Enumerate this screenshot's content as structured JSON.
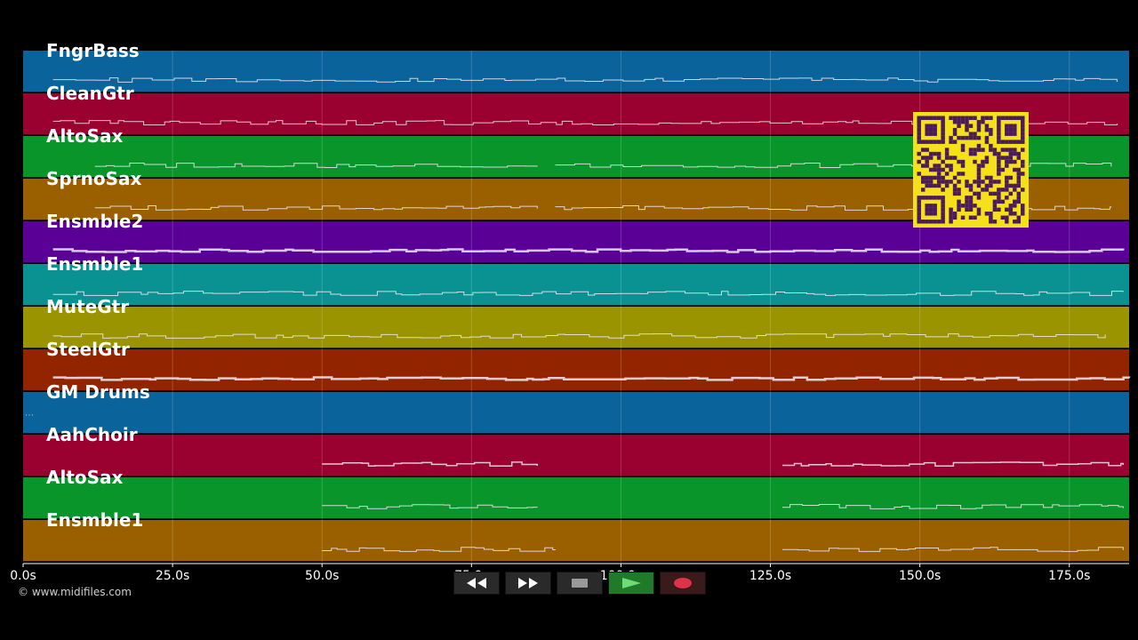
{
  "tracks": [
    {
      "name": "FngrBass",
      "color": "#0a639a",
      "segments": [
        [
          5,
          183
        ]
      ],
      "thick": 1
    },
    {
      "name": "CleanGtr",
      "color": "#9a0030",
      "segments": [
        [
          5,
          183
        ]
      ],
      "thick": 1
    },
    {
      "name": "AltoSax",
      "color": "#0a952a",
      "segments": [
        [
          12,
          86
        ],
        [
          89,
          182
        ]
      ],
      "thick": 1
    },
    {
      "name": "SprnoSax",
      "color": "#9a6000",
      "segments": [
        [
          12,
          86
        ],
        [
          89,
          182
        ]
      ],
      "thick": 1
    },
    {
      "name": "Ensmble2",
      "color": "#5b0097",
      "segments": [
        [
          5,
          184
        ]
      ],
      "thick": 3
    },
    {
      "name": "Ensmble1",
      "color": "#0a9292",
      "segments": [
        [
          5,
          184
        ]
      ],
      "thick": 1
    },
    {
      "name": "MuteGtr",
      "color": "#999400",
      "segments": [
        [
          5,
          181
        ]
      ],
      "thick": 1
    },
    {
      "name": "SteelGtr",
      "color": "#922500",
      "segments": [
        [
          5,
          185
        ]
      ],
      "thick": 3
    },
    {
      "name": "GM Drums",
      "color": "#0a639a",
      "segments": [],
      "thick": 1
    },
    {
      "name": "AahChoir",
      "color": "#9a0030",
      "segments": [
        [
          50,
          86
        ],
        [
          127,
          184
        ]
      ],
      "thick": 2
    },
    {
      "name": "AltoSax",
      "color": "#0a952a",
      "segments": [
        [
          50,
          86
        ],
        [
          127,
          184
        ]
      ],
      "thick": 1
    },
    {
      "name": "Ensmble1",
      "color": "#9a6000",
      "segments": [
        [
          50,
          89
        ],
        [
          127,
          184
        ]
      ],
      "thick": 1
    }
  ],
  "chart_data": {
    "type": "timeline",
    "x_unit": "s",
    "xlim": [
      0,
      185
    ],
    "ticks": [
      0,
      25,
      50,
      75,
      100,
      125,
      150,
      175
    ],
    "tick_labels": [
      "0.0s",
      "25.0s",
      "50.0s",
      "75.0s",
      "100.0s",
      "125.0s",
      "150.0s",
      "175.0s"
    ]
  },
  "copyright": "© www.midifiles.com",
  "transport": [
    {
      "name": "rewind-button",
      "icon": "rewind-icon"
    },
    {
      "name": "fast-forward-button",
      "icon": "fast-forward-icon"
    },
    {
      "name": "stop-button",
      "icon": "stop-icon"
    },
    {
      "name": "play-button",
      "icon": "play-icon"
    },
    {
      "name": "record-button",
      "icon": "record-icon"
    }
  ],
  "qr": {
    "color": "#f5e11a",
    "dark": "#4a1a5a"
  }
}
